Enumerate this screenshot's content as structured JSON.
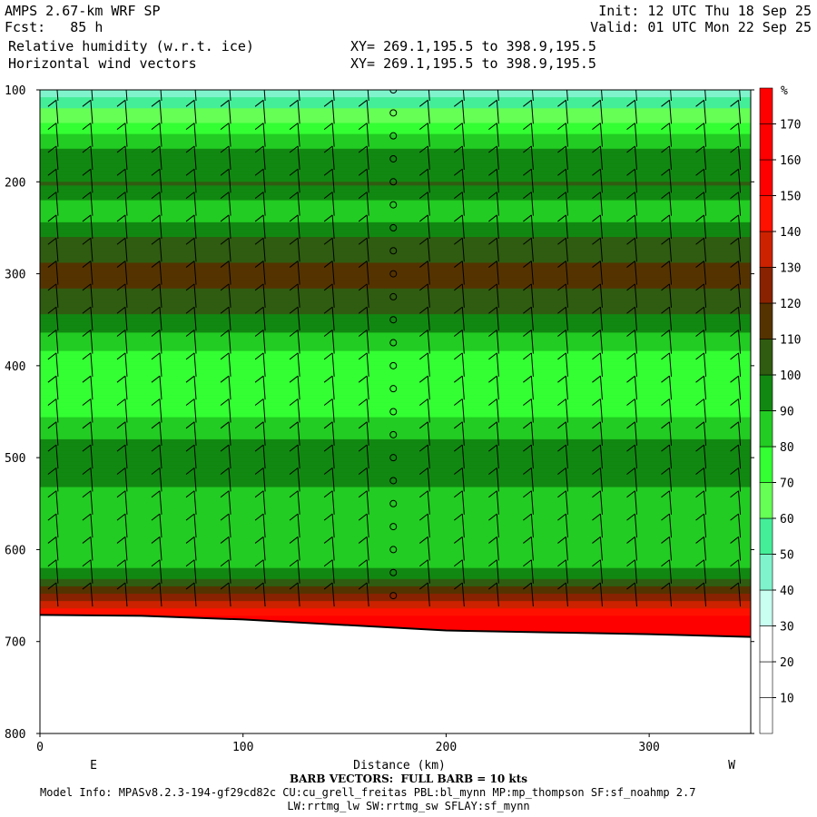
{
  "header": {
    "model": "AMPS 2.67-km WRF SP",
    "forecast": "Fcst:   85 h",
    "field1": "Relative humidity (w.r.t. ice)",
    "field2": "Horizontal wind vectors",
    "init": "Init: 12 UTC Thu 18 Sep 25",
    "valid": "Valid: 01 UTC Mon 22 Sep 25",
    "xy1": "XY= 269.1,195.5 to 398.9,195.5",
    "xy2": "XY= 269.1,195.5 to 398.9,195.5"
  },
  "footer": {
    "barb_note": "BARB VECTORS:  FULL BARB = 10 kts",
    "model_info": "Model Info: MPASv8.2.3-194-gf29cd82c CU:cu_grell_freitas PBL:bl_mynn MP:mp_thompson SF:sf_noahmp 2.7",
    "model_info2": "LW:rrtmg_lw SW:rrtmg_sw SFLAY:sf_mynn"
  },
  "chart_data": {
    "type": "heatmap",
    "title": "Relative humidity (w.r.t. ice)",
    "xlabel": "Distance (km)",
    "ylabel": "",
    "x_left_label": "E",
    "x_right_label": "W",
    "xlim": [
      0,
      350
    ],
    "ylim": [
      100,
      800
    ],
    "y_inverted": true,
    "x_ticks": [
      0,
      100,
      200,
      300
    ],
    "y_ticks": [
      100,
      200,
      300,
      400,
      500,
      600,
      700,
      800
    ],
    "x_tick_labels": [
      "0",
      "100",
      "200",
      "300"
    ],
    "y_tick_labels": [
      "100",
      "200",
      "300",
      "400",
      "500",
      "600",
      "700",
      "800"
    ],
    "grid": false,
    "colorbar": {
      "unit_label": "%",
      "levels": [
        10,
        20,
        30,
        40,
        50,
        60,
        70,
        80,
        90,
        100,
        110,
        120,
        130,
        140,
        150,
        160,
        170
      ],
      "labels": [
        "10",
        "20",
        "30",
        "40",
        "50",
        "60",
        "70",
        "80",
        "90",
        "100",
        "110",
        "120",
        "130",
        "140",
        "150",
        "160",
        "170"
      ],
      "colors": [
        "#ffffff",
        "#ffffff",
        "#ffffff",
        "#c8fff0",
        "#7ff3cc",
        "#44ee99",
        "#66ff55",
        "#33ff33",
        "#22cc22",
        "#118811",
        "#2f5c10",
        "#553300",
        "#882200",
        "#cc2200",
        "#ff1100",
        "#ff0000",
        "#ff0000",
        "#ff0000"
      ]
    },
    "rh_levels": [
      {
        "p": 100,
        "rh": 45
      },
      {
        "p": 120,
        "rh": 62
      },
      {
        "p": 140,
        "rh": 75
      },
      {
        "p": 170,
        "rh": 95
      },
      {
        "p": 200,
        "rh": 100
      },
      {
        "p": 230,
        "rh": 82
      },
      {
        "p": 260,
        "rh": 100
      },
      {
        "p": 300,
        "rh": 115
      },
      {
        "p": 340,
        "rh": 100
      },
      {
        "p": 400,
        "rh": 72
      },
      {
        "p": 450,
        "rh": 78
      },
      {
        "p": 490,
        "rh": 95
      },
      {
        "p": 530,
        "rh": 90
      },
      {
        "p": 580,
        "rh": 82
      },
      {
        "p": 620,
        "rh": 90
      },
      {
        "p": 650,
        "rh": 125
      },
      {
        "p": 680,
        "rh": 160
      }
    ],
    "terrain_pressure": [
      {
        "x": 0,
        "p": 671
      },
      {
        "x": 50,
        "p": 672
      },
      {
        "x": 100,
        "p": 676
      },
      {
        "x": 150,
        "p": 682
      },
      {
        "x": 200,
        "p": 688
      },
      {
        "x": 250,
        "p": 690
      },
      {
        "x": 300,
        "p": 692
      },
      {
        "x": 350,
        "p": 695
      }
    ],
    "barb_columns_km": [
      8,
      25,
      42,
      59,
      76,
      93,
      110,
      127,
      144,
      161,
      174,
      191,
      208,
      225,
      242,
      259,
      276,
      293,
      310,
      327,
      344
    ],
    "calm_column_km": 174,
    "barb_levels": [
      100,
      125,
      150,
      175,
      200,
      225,
      250,
      275,
      300,
      325,
      350,
      375,
      400,
      425,
      450,
      475,
      500,
      525,
      550,
      575,
      600,
      625,
      650
    ]
  }
}
